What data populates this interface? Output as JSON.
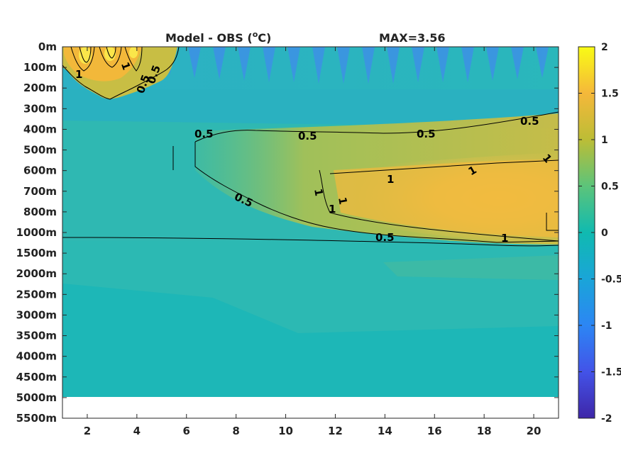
{
  "chart_data": {
    "type": "heatmap",
    "title": "Model - OBS (",
    "title_unit_superscript": "o",
    "title_unit_suffix": "C)",
    "max_label": "MAX=3.56",
    "xticks": [
      "2",
      "4",
      "6",
      "8",
      "10",
      "12",
      "14",
      "16",
      "18",
      "20"
    ],
    "xlim": [
      1,
      21
    ],
    "ytick_labels": [
      "0m",
      "100m",
      "200m",
      "300m",
      "400m",
      "500m",
      "600m",
      "700m",
      "800m",
      "1000m",
      "1500m",
      "2000m",
      "2500m",
      "3000m",
      "3500m",
      "4000m",
      "4500m",
      "5000m",
      "5500m"
    ],
    "y_depth_data_limit": "5000m",
    "colorbar": {
      "ticks": [
        "2",
        "1.5",
        "1",
        "0.5",
        "0",
        "-0.5",
        "-1",
        "-1.5",
        "-2"
      ],
      "range": [
        -2,
        2
      ],
      "colormap": "parula"
    },
    "contour_levels": [
      0.5,
      1
    ],
    "contour_labels": [
      "1",
      "1",
      "0.5",
      "0.5",
      "0.5",
      "0.5",
      "0.5",
      "0.5",
      "0.5",
      "0.5",
      "1",
      "1",
      "1",
      "1",
      "1",
      "1",
      "1"
    ],
    "grid": false
  }
}
